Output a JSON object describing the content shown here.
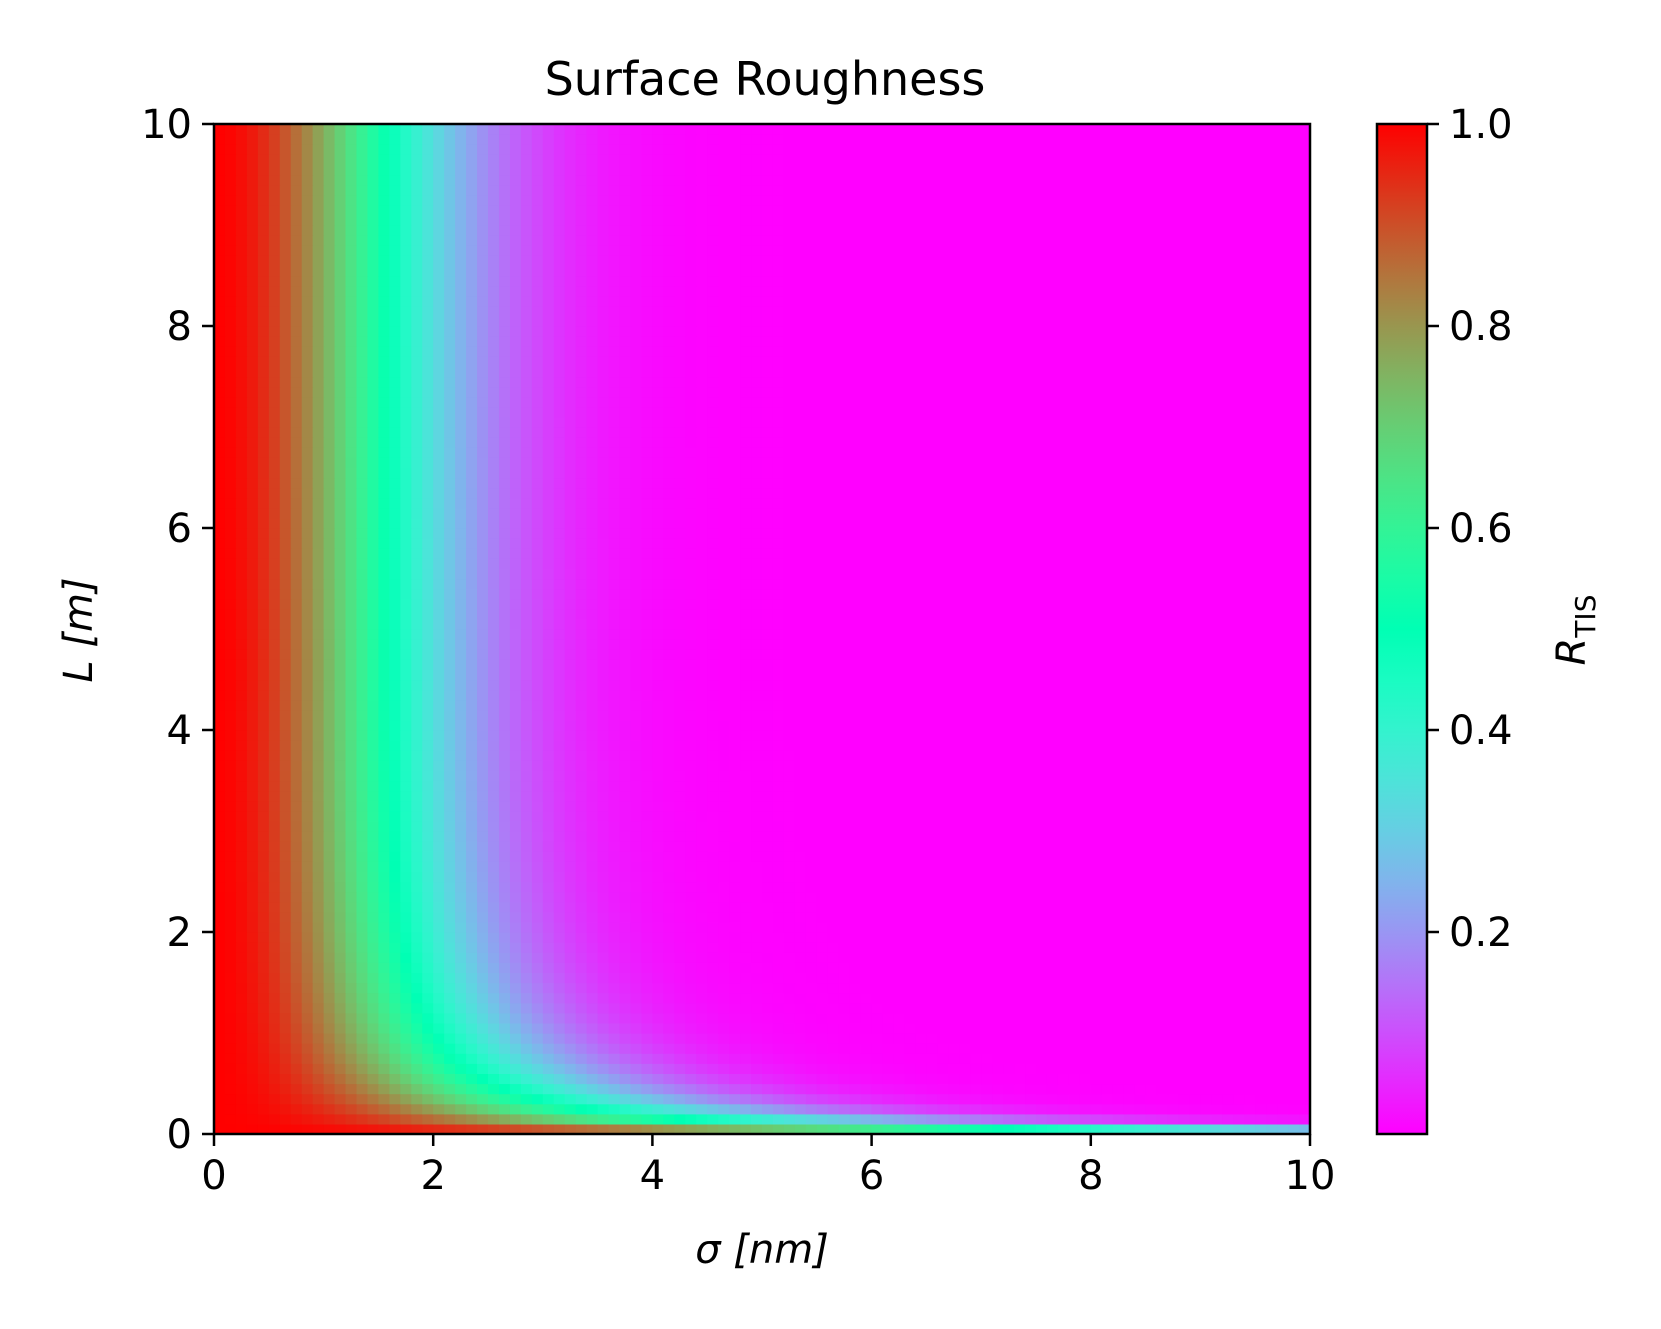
{
  "chart_data": {
    "type": "heatmap",
    "title": "Surface Roughness",
    "xlabel": "σ [nm]",
    "ylabel": "L [m]",
    "colorbar_label": {
      "main": "R",
      "sub": "TIS"
    },
    "xlim": [
      0,
      10
    ],
    "ylim": [
      0,
      10
    ],
    "x_ticks": [
      {
        "value": 0,
        "label": "0"
      },
      {
        "value": 2,
        "label": "2"
      },
      {
        "value": 4,
        "label": "4"
      },
      {
        "value": 6,
        "label": "6"
      },
      {
        "value": 8,
        "label": "8"
      },
      {
        "value": 10,
        "label": "10"
      }
    ],
    "y_ticks": [
      {
        "value": 0,
        "label": "0"
      },
      {
        "value": 2,
        "label": "2"
      },
      {
        "value": 4,
        "label": "4"
      },
      {
        "value": 6,
        "label": "6"
      },
      {
        "value": 8,
        "label": "8"
      },
      {
        "value": 10,
        "label": "10"
      }
    ],
    "colorbar_range": [
      0.0,
      1.0
    ],
    "colorbar_ticks": [
      {
        "value": 0.2,
        "label": "0.2"
      },
      {
        "value": 0.4,
        "label": "0.4"
      },
      {
        "value": 0.6,
        "label": "0.6"
      },
      {
        "value": 0.8,
        "label": "0.8"
      },
      {
        "value": 1.0,
        "label": "1.0"
      }
    ],
    "colormap": "rainbow",
    "grid": false,
    "colorbar_placement": "right",
    "model": {
      "formula": "R_TIS = exp(-(4*pi*sigma/lambda)^2 * (1 - exp(-L)))",
      "lambda_nm": 24
    },
    "resolution": {
      "nx": 100,
      "ny": 100
    }
  }
}
